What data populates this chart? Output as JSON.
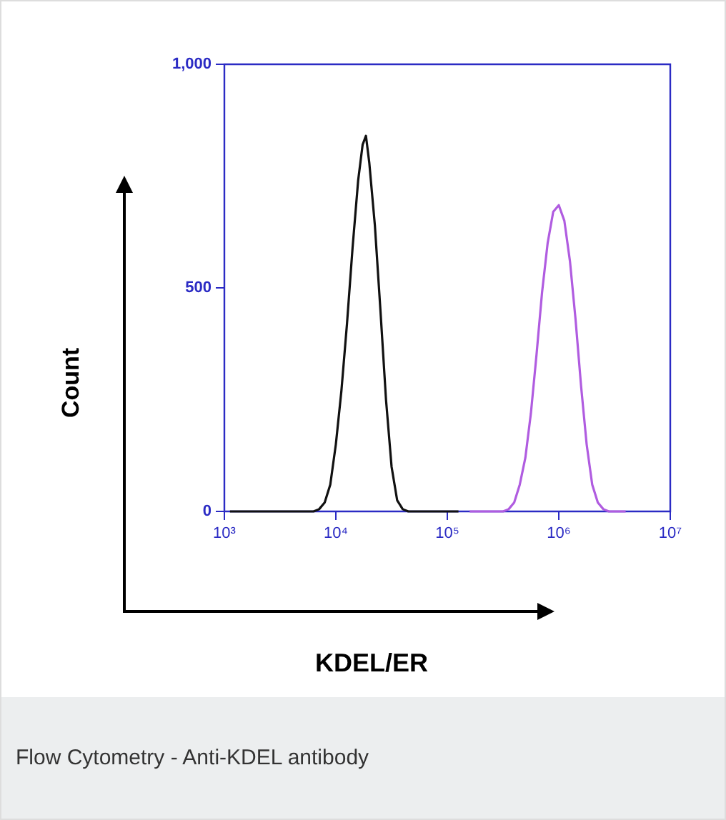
{
  "chart_data": {
    "type": "line",
    "xlabel": "KDEL/ER",
    "ylabel": "Count",
    "annotations": [
      "Flow Cytometry - Anti-KDEL antibody"
    ],
    "log": "x",
    "marker": "none",
    "grid": false,
    "legend": false,
    "xlim": [
      1000,
      10000000
    ],
    "xticks": [
      {
        "value": 1000,
        "label": "10³"
      },
      {
        "value": 10000,
        "label": "10⁴"
      },
      {
        "value": 100000,
        "label": "10⁵"
      },
      {
        "value": 1000000,
        "label": "10⁶"
      },
      {
        "value": 10000000,
        "label": "10⁷"
      }
    ],
    "ylim": [
      0,
      1000
    ],
    "yticks": [
      0,
      500,
      {
        "value": 1000,
        "label": "1,000"
      }
    ],
    "series": [
      {
        "color": "#111111",
        "x": [
          1122,
          3162,
          6310,
          7079,
          7943,
          8913,
          10000,
          11220,
          12590,
          14130,
          15850,
          17380,
          18620,
          19950,
          22390,
          25120,
          28180,
          31620,
          35480,
          39810,
          44670,
          125900
        ],
        "values": [
          0,
          0,
          0,
          5,
          20,
          60,
          150,
          270,
          420,
          590,
          740,
          820,
          840,
          780,
          640,
          450,
          250,
          100,
          25,
          5,
          0,
          0
        ]
      },
      {
        "color": "#b05ce0",
        "x": [
          158500,
          316200,
          354800,
          398100,
          446700,
          501200,
          562300,
          631000,
          707900,
          794300,
          891300,
          1000000,
          1122000,
          1259000,
          1413000,
          1585000,
          1778000,
          1995000,
          2239000,
          2512000,
          2818000,
          3981000
        ],
        "values": [
          0,
          0,
          5,
          20,
          60,
          120,
          220,
          350,
          490,
          600,
          670,
          685,
          650,
          560,
          430,
          280,
          150,
          60,
          20,
          5,
          0,
          0
        ]
      }
    ]
  }
}
